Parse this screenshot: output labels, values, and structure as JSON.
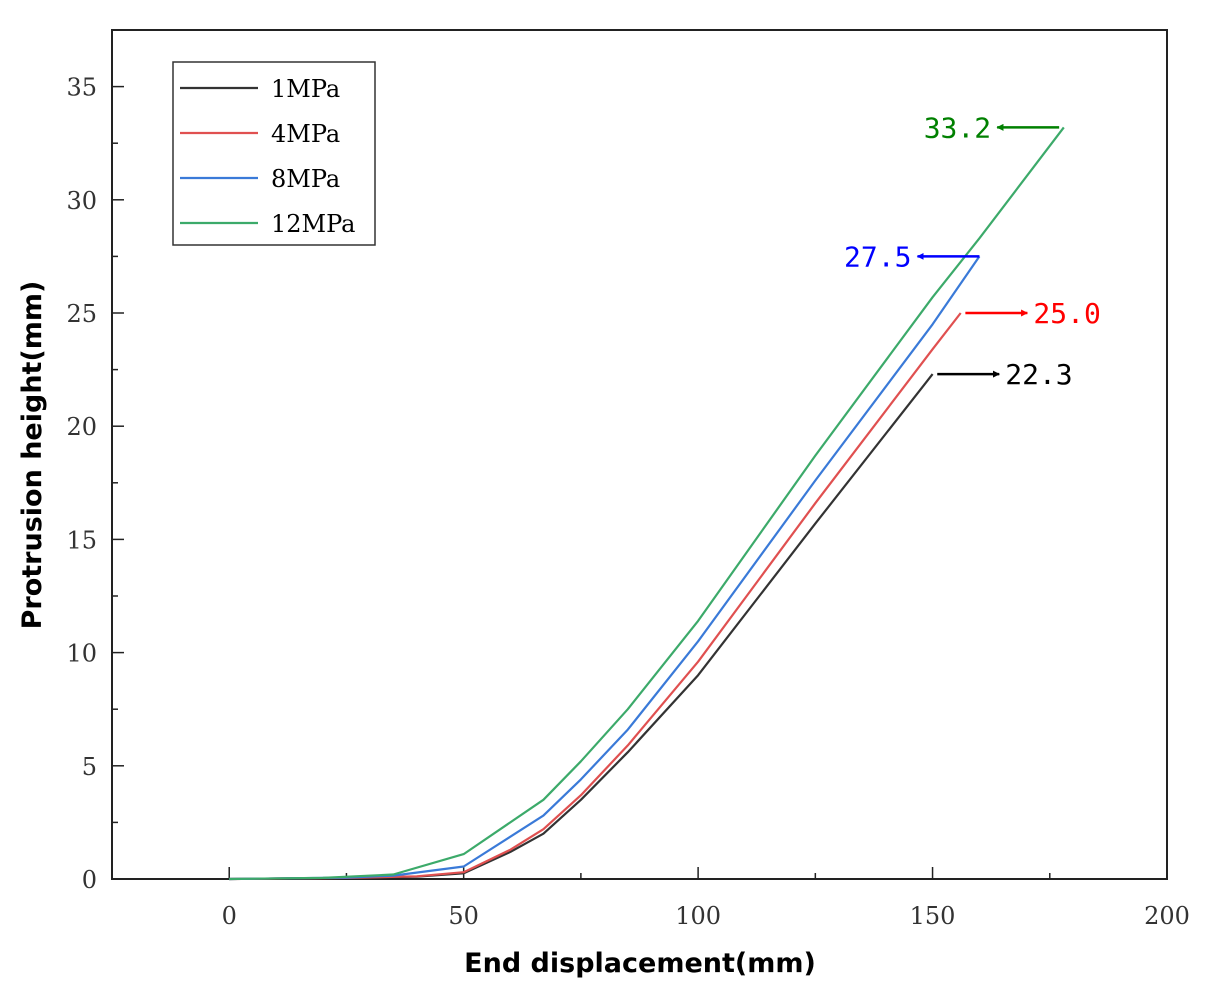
{
  "chart_data": {
    "type": "line",
    "title": "",
    "xlabel": "End displacement(mm)",
    "ylabel": "Protrusion height(mm)",
    "xlim": [
      -25,
      200
    ],
    "ylim": [
      0,
      37.5
    ],
    "x_ticks": [
      0,
      50,
      100,
      150,
      200
    ],
    "y_ticks": [
      0,
      5,
      10,
      15,
      20,
      25,
      30,
      35
    ],
    "legend_position": "top-left",
    "series": [
      {
        "name": "1MPa",
        "color": "#333333",
        "points": [
          [
            0,
            0
          ],
          [
            25,
            0.05
          ],
          [
            40,
            0.1
          ],
          [
            50,
            0.25
          ],
          [
            60,
            1.2
          ],
          [
            67,
            2.0
          ],
          [
            75,
            3.5
          ],
          [
            85,
            5.6
          ],
          [
            100,
            9.0
          ],
          [
            125,
            15.7
          ],
          [
            150,
            22.3
          ]
        ],
        "end_value": 22.3,
        "annotation": {
          "label": "22.3",
          "color": "#000000",
          "x": 151,
          "y": 22.3,
          "direction": "right"
        }
      },
      {
        "name": "4MPa",
        "color": "#e05050",
        "points": [
          [
            0,
            0
          ],
          [
            25,
            0.05
          ],
          [
            40,
            0.12
          ],
          [
            50,
            0.3
          ],
          [
            60,
            1.3
          ],
          [
            67,
            2.2
          ],
          [
            75,
            3.7
          ],
          [
            85,
            5.9
          ],
          [
            100,
            9.6
          ],
          [
            125,
            16.6
          ],
          [
            150,
            23.4
          ],
          [
            156,
            25.0
          ]
        ],
        "end_value": 25.0,
        "annotation": {
          "label": "25.0",
          "color": "#ff0000",
          "x": 157,
          "y": 25.0,
          "direction": "right"
        }
      },
      {
        "name": "8MPa",
        "color": "#3a7ad8",
        "points": [
          [
            0,
            0
          ],
          [
            25,
            0.06
          ],
          [
            35,
            0.15
          ],
          [
            50,
            0.55
          ],
          [
            67,
            2.8
          ],
          [
            75,
            4.4
          ],
          [
            85,
            6.6
          ],
          [
            100,
            10.5
          ],
          [
            125,
            17.6
          ],
          [
            150,
            24.5
          ],
          [
            160,
            27.5
          ]
        ],
        "end_value": 27.5,
        "annotation": {
          "label": "27.5",
          "color": "#0000ff",
          "x": 160,
          "y": 27.5,
          "direction": "left"
        }
      },
      {
        "name": "12MPa",
        "color": "#3caa6a",
        "points": [
          [
            0,
            0
          ],
          [
            20,
            0.05
          ],
          [
            35,
            0.2
          ],
          [
            50,
            1.1
          ],
          [
            67,
            3.5
          ],
          [
            75,
            5.2
          ],
          [
            85,
            7.5
          ],
          [
            100,
            11.4
          ],
          [
            125,
            18.7
          ],
          [
            150,
            25.7
          ],
          [
            160,
            28.3
          ],
          [
            178,
            33.2
          ]
        ],
        "end_value": 33.2,
        "annotation": {
          "label": "33.2",
          "color": "#008000",
          "x": 177,
          "y": 33.2,
          "direction": "left"
        }
      }
    ]
  }
}
